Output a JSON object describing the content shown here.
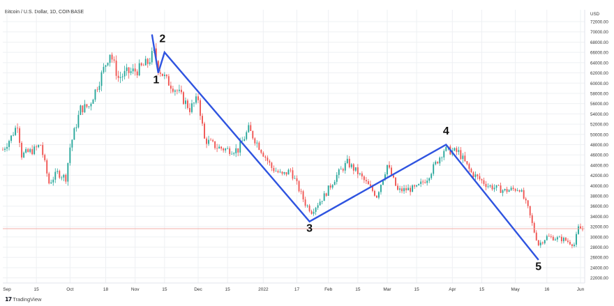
{
  "header": {
    "symbol_title": "Bitcoin / U.S. Dollar, 1D, COINBASE",
    "currency": "USD"
  },
  "footer": {
    "logo_mark": "𝟭𝟳",
    "brand": "TradingView"
  },
  "colors": {
    "up": "#26a69a",
    "down": "#ef5350",
    "wave_line": "#2f54e0",
    "price_line": "#f2a39b",
    "grid": "#eef0f3",
    "axis_text": "#333333"
  },
  "chart_data": {
    "type": "candlestick",
    "x_axis": {
      "type": "date",
      "range": [
        "2021-08-30",
        "2022-06-03"
      ]
    },
    "y_axis": {
      "range": [
        21000,
        73500
      ],
      "side": "right",
      "unit": "USD"
    },
    "grid": true,
    "y_ticks": [
      "72000.00",
      "70000.00",
      "68000.00",
      "66000.00",
      "64000.00",
      "62000.00",
      "60000.00",
      "58000.00",
      "56000.00",
      "54000.00",
      "52000.00",
      "50000.00",
      "48000.00",
      "46000.00",
      "44000.00",
      "42000.00",
      "40000.00",
      "38000.00",
      "36000.00",
      "34000.00",
      "32000.00",
      "30000.00",
      "28000.00",
      "26000.00",
      "24000.00",
      "22000.00"
    ],
    "x_ticks": [
      {
        "date": "2021-09-01",
        "label": "Sep"
      },
      {
        "date": "2021-09-15",
        "label": "15"
      },
      {
        "date": "2021-10-01",
        "label": "Oct"
      },
      {
        "date": "2021-10-18",
        "label": "18"
      },
      {
        "date": "2021-11-01",
        "label": "Nov"
      },
      {
        "date": "2021-11-15",
        "label": "15"
      },
      {
        "date": "2021-12-01",
        "label": "Dec"
      },
      {
        "date": "2021-12-15",
        "label": "15"
      },
      {
        "date": "2022-01-01",
        "label": "2022"
      },
      {
        "date": "2022-01-17",
        "label": "17"
      },
      {
        "date": "2022-02-01",
        "label": "Feb"
      },
      {
        "date": "2022-02-15",
        "label": "15"
      },
      {
        "date": "2022-03-01",
        "label": "Mar"
      },
      {
        "date": "2022-03-15",
        "label": "15"
      },
      {
        "date": "2022-04-01",
        "label": "Apr"
      },
      {
        "date": "2022-04-15",
        "label": "15"
      },
      {
        "date": "2022-05-01",
        "label": "May"
      },
      {
        "date": "2022-05-16",
        "label": "16"
      },
      {
        "date": "2022-06-01",
        "label": "Jun"
      }
    ],
    "close_path": [
      [
        "2021-08-30",
        47000
      ],
      [
        "2021-09-03",
        49500
      ],
      [
        "2021-09-06",
        52000
      ],
      [
        "2021-09-08",
        46000
      ],
      [
        "2021-09-14",
        47000
      ],
      [
        "2021-09-17",
        48000
      ],
      [
        "2021-09-21",
        40500
      ],
      [
        "2021-09-25",
        42500
      ],
      [
        "2021-09-29",
        41500
      ],
      [
        "2021-10-01",
        47500
      ],
      [
        "2021-10-06",
        55000
      ],
      [
        "2021-10-10",
        55500
      ],
      [
        "2021-10-15",
        60500
      ],
      [
        "2021-10-20",
        66000
      ],
      [
        "2021-10-24",
        61000
      ],
      [
        "2021-10-28",
        62000
      ],
      [
        "2021-11-02",
        62500
      ],
      [
        "2021-11-07",
        64000
      ],
      [
        "2021-11-10",
        66000
      ],
      [
        "2021-11-12",
        63000
      ],
      [
        "2021-11-16",
        60500
      ],
      [
        "2021-11-21",
        58500
      ],
      [
        "2021-11-27",
        55000
      ],
      [
        "2021-12-01",
        57000
      ],
      [
        "2021-12-04",
        49000
      ],
      [
        "2021-12-10",
        47500
      ],
      [
        "2021-12-15",
        47000
      ],
      [
        "2021-12-20",
        47000
      ],
      [
        "2021-12-25",
        51000
      ],
      [
        "2021-12-31",
        47000
      ],
      [
        "2022-01-05",
        43500
      ],
      [
        "2022-01-10",
        42000
      ],
      [
        "2022-01-14",
        43000
      ],
      [
        "2022-01-21",
        36500
      ],
      [
        "2022-01-24",
        35000
      ],
      [
        "2022-01-30",
        38000
      ],
      [
        "2022-02-05",
        42000
      ],
      [
        "2022-02-10",
        44500
      ],
      [
        "2022-02-15",
        42500
      ],
      [
        "2022-02-20",
        40000
      ],
      [
        "2022-02-24",
        38000
      ],
      [
        "2022-03-01",
        44000
      ],
      [
        "2022-03-06",
        39000
      ],
      [
        "2022-03-15",
        39500
      ],
      [
        "2022-03-20",
        41500
      ],
      [
        "2022-03-28",
        47000
      ],
      [
        "2022-04-04",
        46500
      ],
      [
        "2022-04-10",
        42500
      ],
      [
        "2022-04-18",
        40000
      ],
      [
        "2022-04-26",
        39000
      ],
      [
        "2022-05-03",
        39500
      ],
      [
        "2022-05-07",
        35500
      ],
      [
        "2022-05-10",
        31000
      ],
      [
        "2022-05-12",
        28500
      ],
      [
        "2022-05-16",
        30000
      ],
      [
        "2022-05-24",
        29500
      ],
      [
        "2022-05-29",
        28500
      ],
      [
        "2022-05-31",
        31700
      ],
      [
        "2022-06-02",
        31500
      ]
    ],
    "current_price": 31600,
    "wave_line": [
      [
        "2021-11-09",
        69500
      ],
      [
        "2021-11-12",
        62000
      ],
      [
        "2021-11-15",
        66000
      ],
      [
        "2022-01-23",
        33000
      ],
      [
        "2022-03-29",
        48000
      ],
      [
        "2022-05-12",
        25500
      ]
    ],
    "annotations": [
      {
        "text": "1",
        "x": "2021-11-11",
        "y": 60000
      },
      {
        "text": "2",
        "x": "2021-11-14",
        "y": 68000
      },
      {
        "text": "3",
        "x": "2022-01-23",
        "y": 31000
      },
      {
        "text": "4",
        "x": "2022-03-29",
        "y": 50000
      },
      {
        "text": "5",
        "x": "2022-05-12",
        "y": 23500
      }
    ]
  }
}
